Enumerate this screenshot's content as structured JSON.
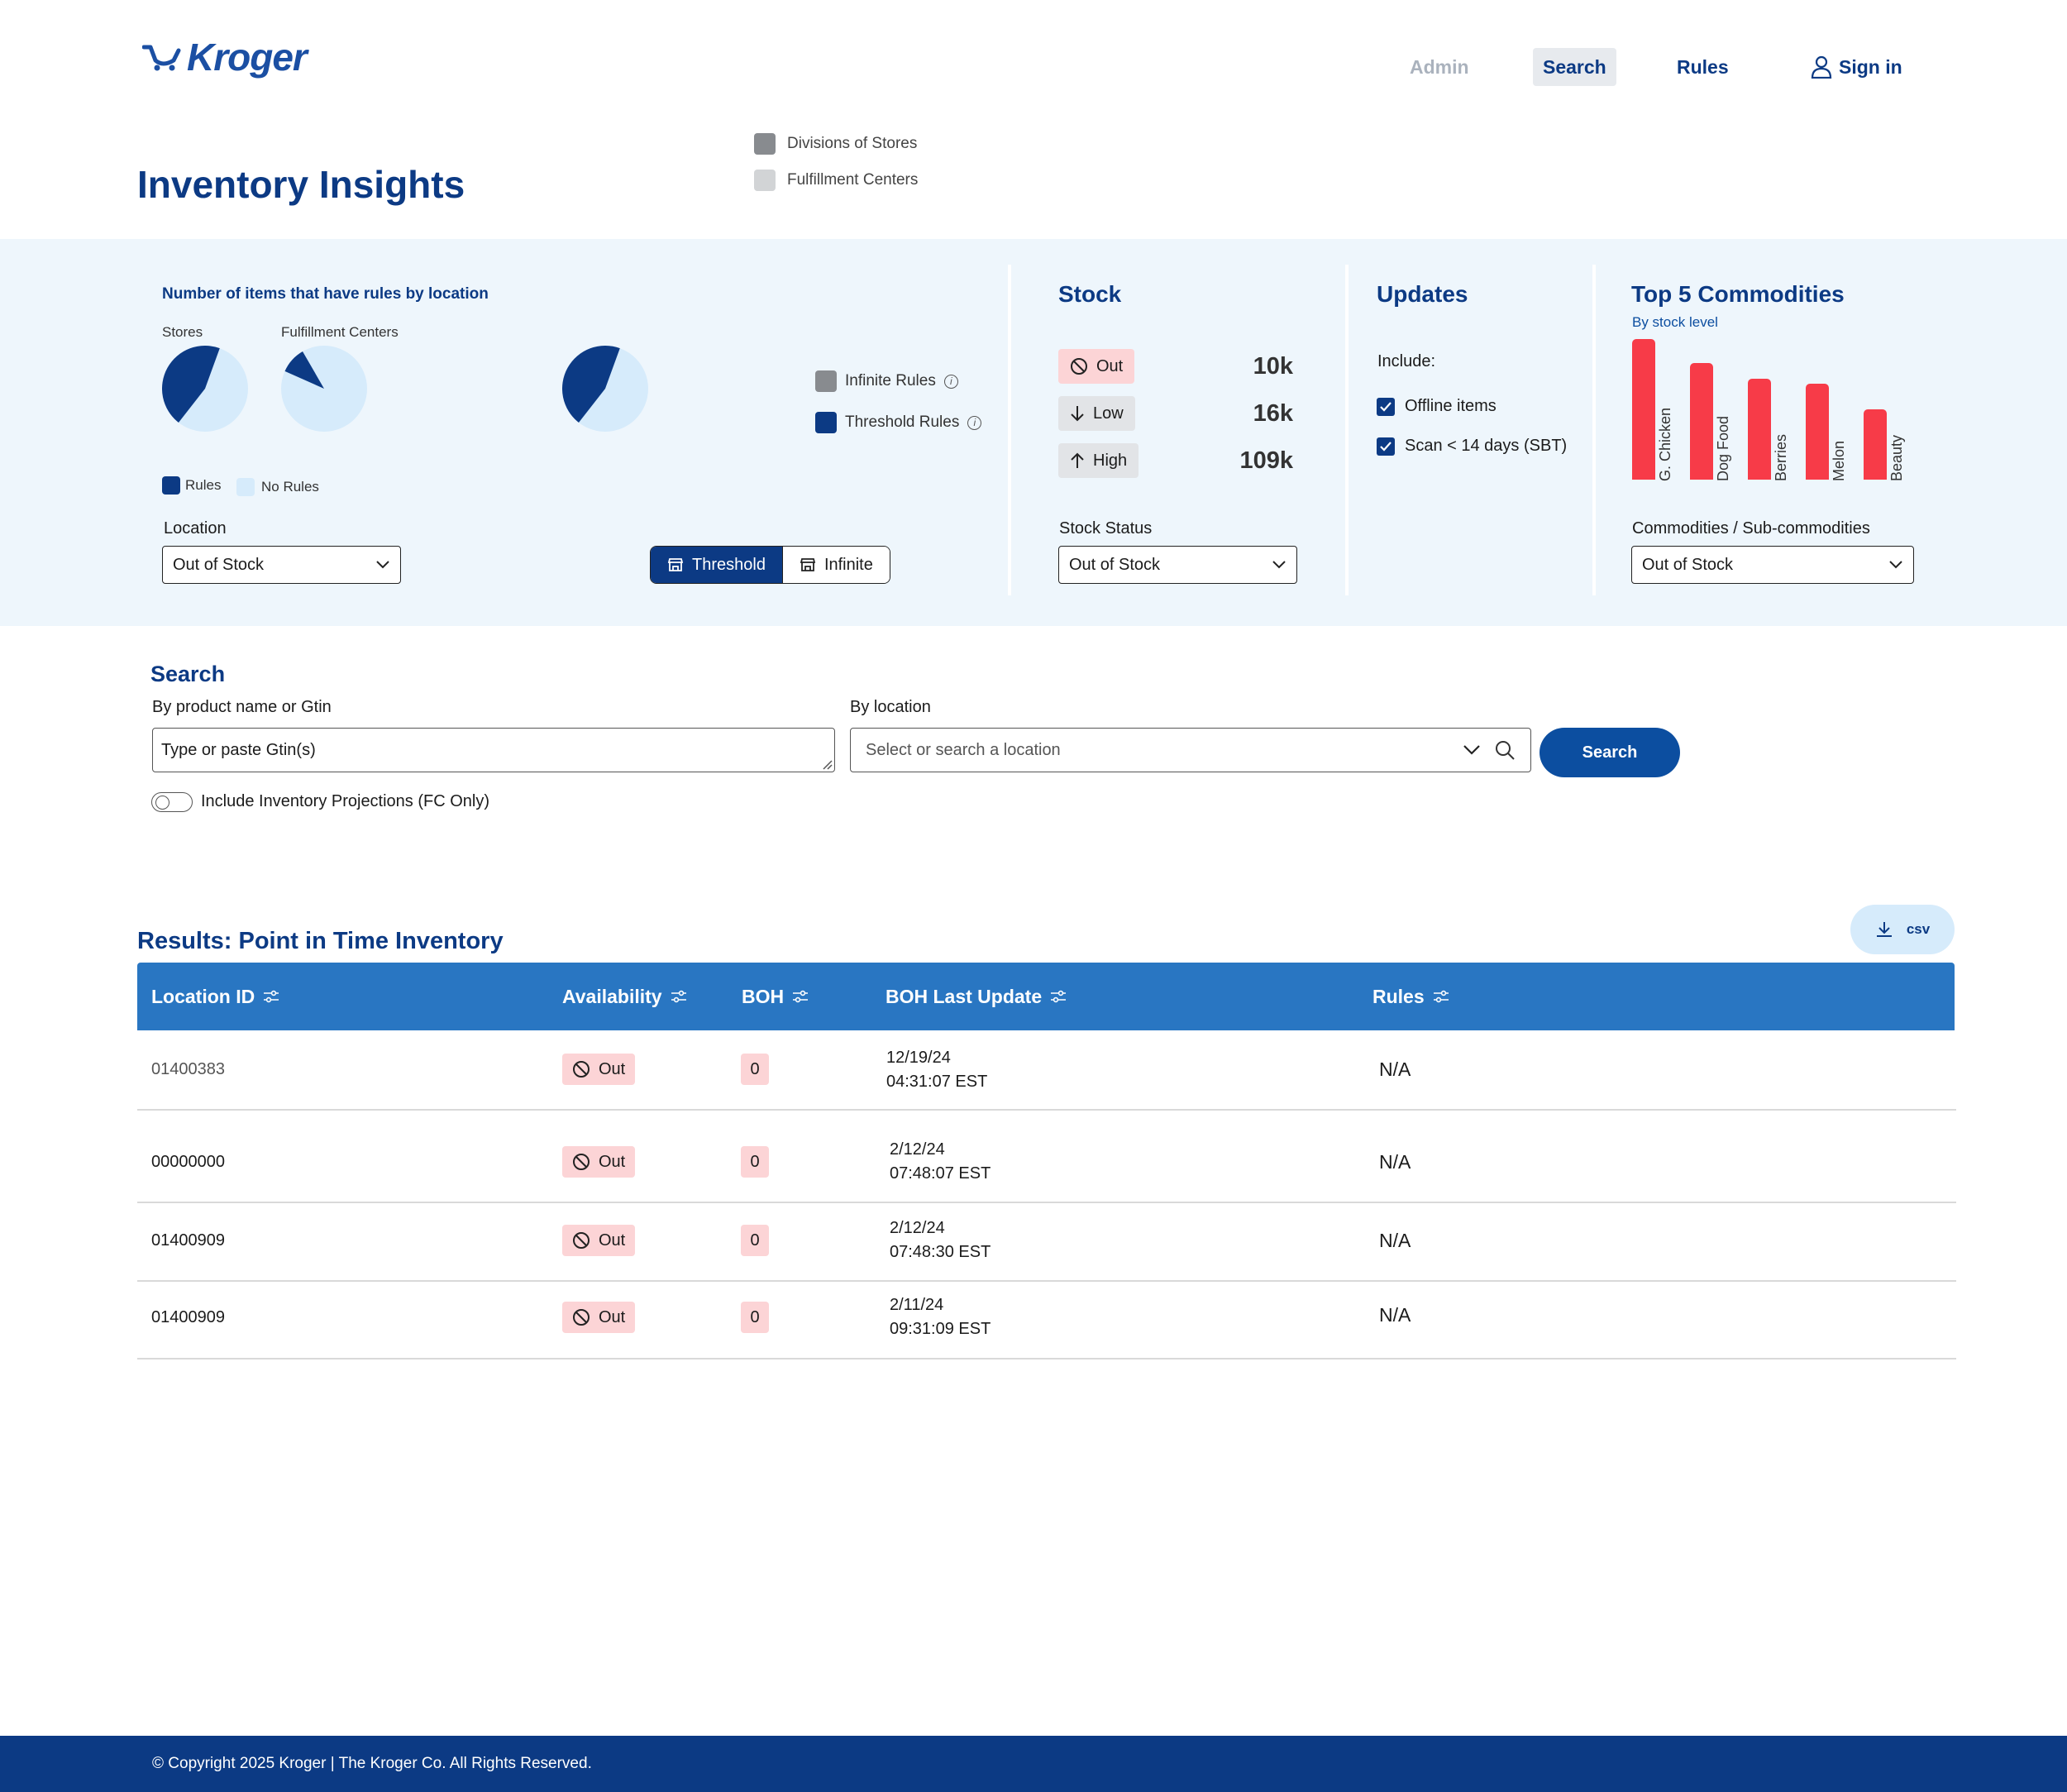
{
  "brand": {
    "name": "Kroger"
  },
  "nav": {
    "admin": "Admin",
    "search": "Search",
    "rules": "Rules",
    "sign_in": "Sign in"
  },
  "page_title": "Inventory Insights",
  "top_legend": {
    "items": [
      {
        "label": "Divisions of Stores",
        "color": "#888b8f"
      },
      {
        "label": "Fulfillment Centers",
        "color": "#d2d4d6"
      }
    ]
  },
  "rules_panel": {
    "title": "Number of items that have rules by location",
    "stores_label": "Stores",
    "fc_label": "Fulfillment Centers",
    "legend_rules": "Rules",
    "legend_no_rules": "No Rules",
    "legend_infinite": "Infinite Rules",
    "legend_threshold": "Threshold Rules",
    "location_label": "Location",
    "location_value": "Out of Stock",
    "toggle_threshold": "Threshold",
    "toggle_infinite": "Infinite",
    "colors": {
      "rules": "#0c3a84",
      "no_rules": "#d6ebfb",
      "infinite": "#888b8f",
      "threshold": "#0c3a84"
    }
  },
  "chart_data": [
    {
      "type": "pie",
      "title": "Stores",
      "labels": [
        "Rules",
        "No Rules"
      ],
      "values": [
        45,
        55
      ]
    },
    {
      "type": "pie",
      "title": "Fulfillment Centers",
      "labels": [
        "Rules",
        "No Rules"
      ],
      "values": [
        10,
        90
      ]
    },
    {
      "type": "pie",
      "title": "",
      "labels": [
        "Rules",
        "No Rules"
      ],
      "values": [
        45,
        55
      ]
    },
    {
      "type": "bar",
      "title": "Top 5 Commodities",
      "subtitle": "By stock level",
      "categories": [
        "G. Chicken",
        "Dog Food",
        "Berries",
        "Melon",
        "Beauty"
      ],
      "values": [
        100,
        83,
        72,
        68,
        50
      ],
      "ylim": [
        0,
        100
      ],
      "color": "#f73b48"
    }
  ],
  "stock": {
    "title": "Stock",
    "rows": [
      {
        "label": "Out",
        "value": "10k",
        "bg": "#fcd4d6",
        "icon": "ban-icon"
      },
      {
        "label": "Low",
        "value": "16k",
        "bg": "#e2e4e7",
        "icon": "arrow-down-icon"
      },
      {
        "label": "High",
        "value": "109k",
        "bg": "#e2e4e7",
        "icon": "arrow-up-icon"
      }
    ],
    "status_label": "Stock Status",
    "status_value": "Out of Stock"
  },
  "updates": {
    "title": "Updates",
    "include_label": "Include:",
    "options": [
      {
        "label": "Offline items",
        "checked": true
      },
      {
        "label": "Scan < 14 days (SBT)",
        "checked": true
      }
    ]
  },
  "commodities": {
    "title": "Top 5 Commodities",
    "subtitle": "By stock level",
    "select_label": "Commodities / Sub-commodities",
    "select_value": "Out of Stock"
  },
  "search": {
    "title": "Search",
    "product_label": "By product name or Gtin",
    "product_value": "Type or paste Gtin(s)",
    "location_label": "By location",
    "location_placeholder": "Select or search a location",
    "button": "Search",
    "projection_toggle": "Include Inventory Projections (FC Only)"
  },
  "results": {
    "title": "Results: Point in Time Inventory",
    "csv_label": "csv",
    "columns": [
      "Location ID",
      "Availability",
      "BOH",
      "BOH Last Update",
      "Rules"
    ],
    "rows": [
      {
        "location_id": "01400383",
        "availability": "Out",
        "boh": "0",
        "date": "12/19/24",
        "time": "04:31:07 EST",
        "rules": "N/A"
      },
      {
        "location_id": "00000000",
        "availability": "Out",
        "boh": "0",
        "date": "2/12/24",
        "time": "07:48:07 EST",
        "rules": "N/A"
      },
      {
        "location_id": "01400909",
        "availability": "Out",
        "boh": "0",
        "date": "2/12/24",
        "time": "07:48:30 EST",
        "rules": "N/A"
      },
      {
        "location_id": "01400909",
        "availability": "Out",
        "boh": "0",
        "date": "2/11/24",
        "time": "09:31:09 EST",
        "rules": "N/A"
      }
    ]
  },
  "footer": {
    "text": "© Copyright 2025 Kroger | The Kroger Co. All Rights Reserved."
  }
}
